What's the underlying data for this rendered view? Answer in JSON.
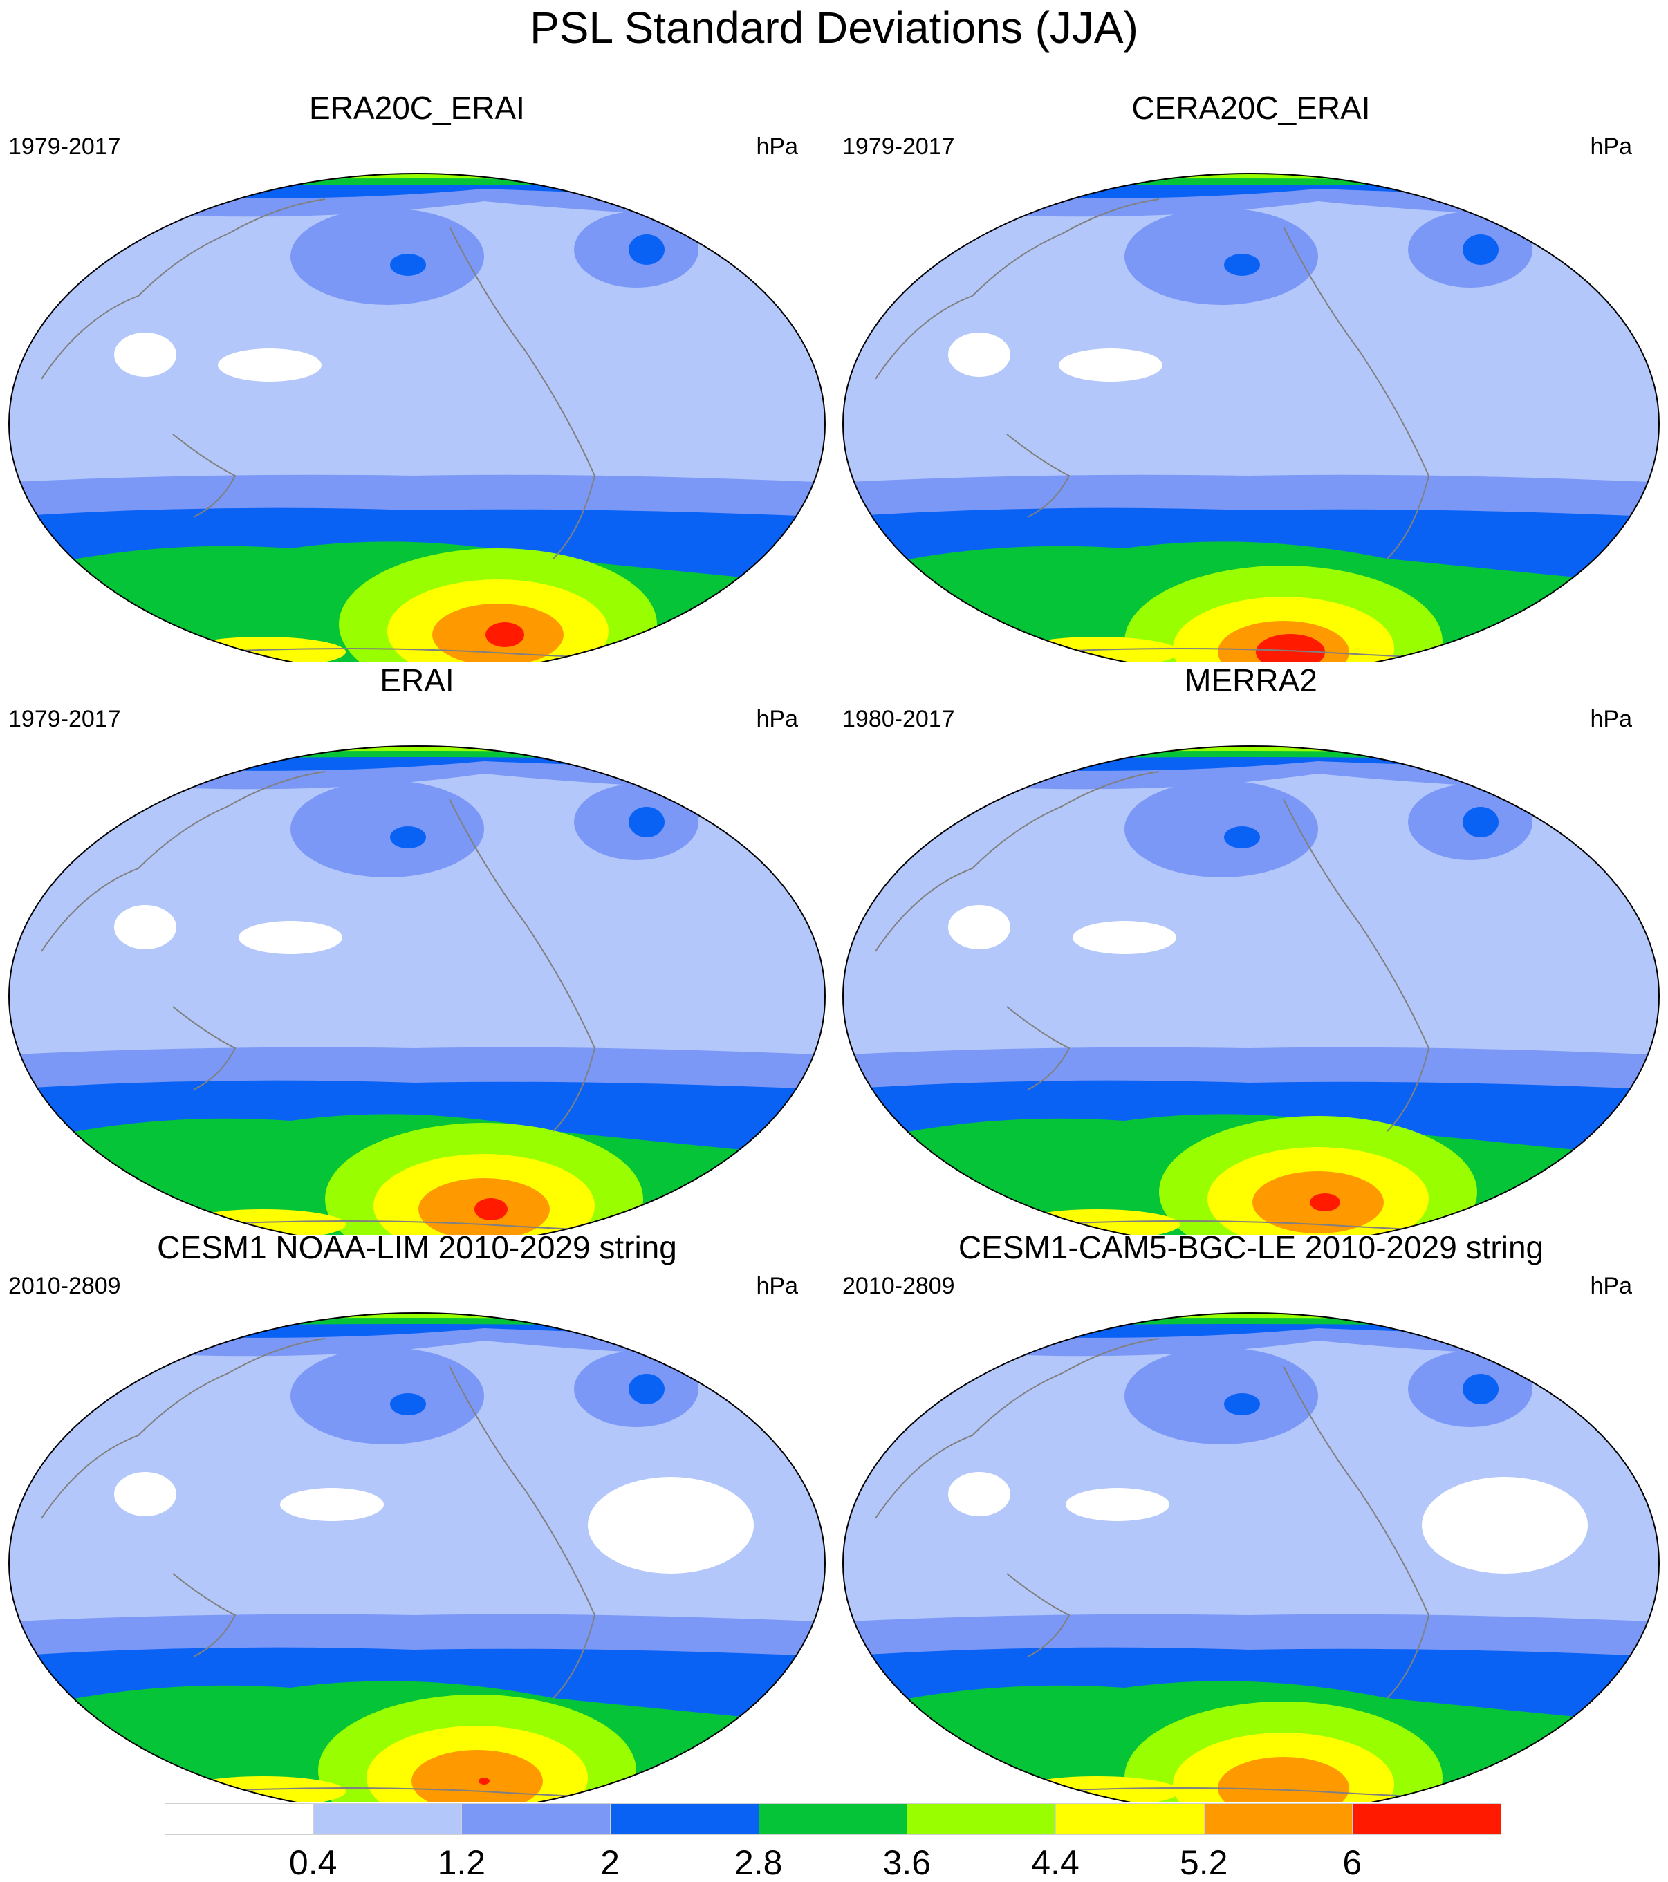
{
  "title": "PSL Standard Deviations (JJA)",
  "panels": [
    {
      "title": "ERA20C_ERAI",
      "period": "1979-2017",
      "units": "hPa"
    },
    {
      "title": "CERA20C_ERAI",
      "period": "1979-2017",
      "units": "hPa"
    },
    {
      "title": "ERAI",
      "period": "1979-2017",
      "units": "hPa"
    },
    {
      "title": "MERRA2",
      "period": "1980-2017",
      "units": "hPa"
    },
    {
      "title": "CESM1 NOAA-LIM 2010-2029 string",
      "period": "2010-2809",
      "units": "hPa"
    },
    {
      "title": "CESM1-CAM5-BGC-LE 2010-2029 string",
      "period": "2010-2809",
      "units": "hPa"
    }
  ],
  "colorbar": {
    "levels": [
      "0.4",
      "1.2",
      "2",
      "2.8",
      "3.6",
      "4.4",
      "5.2",
      "6"
    ],
    "colors": [
      "#ffffff",
      "#b4c7fa",
      "#7b98f7",
      "#0a62f5",
      "#05c437",
      "#99ff00",
      "#ffff00",
      "#ff9900",
      "#ff1a00"
    ]
  },
  "map_style": {
    "ocean_base": "#b4c7fa",
    "coast_color": "#808080"
  }
}
